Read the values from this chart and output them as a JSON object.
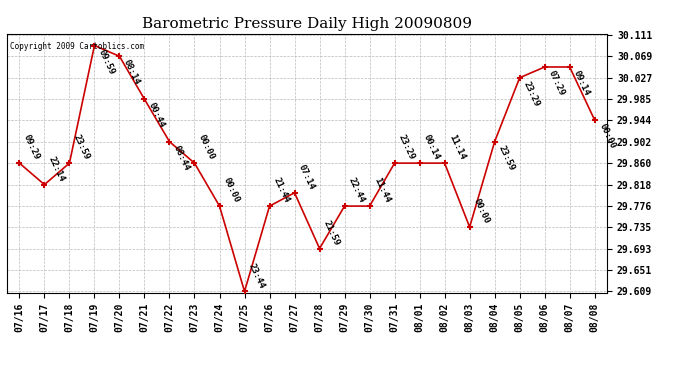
{
  "title": "Barometric Pressure Daily High 20090809",
  "copyright": "Copyright 2009 Cartoblics.com",
  "x_labels": [
    "07/16",
    "07/17",
    "07/18",
    "07/19",
    "07/20",
    "07/21",
    "07/22",
    "07/23",
    "07/24",
    "07/25",
    "07/26",
    "07/27",
    "07/28",
    "07/29",
    "07/30",
    "07/31",
    "08/01",
    "08/02",
    "08/03",
    "08/04",
    "08/05",
    "08/06",
    "08/07",
    "08/08"
  ],
  "y_values": [
    29.86,
    29.818,
    29.86,
    30.09,
    30.069,
    29.985,
    29.902,
    29.86,
    29.776,
    29.609,
    29.776,
    29.802,
    29.693,
    29.776,
    29.776,
    29.86,
    29.86,
    29.86,
    29.735,
    29.902,
    30.027,
    30.048,
    30.048,
    29.944
  ],
  "time_labels": [
    "09:29",
    "22:14",
    "23:59",
    "09:59",
    "08:14",
    "00:44",
    "08:44",
    "00:00",
    "00:00",
    "23:44",
    "21:44",
    "07:14",
    "21:59",
    "22:44",
    "11:44",
    "23:29",
    "00:14",
    "11:14",
    "00:00",
    "23:59",
    "23:29",
    "07:29",
    "09:14",
    "00:00"
  ],
  "y_min": 29.609,
  "y_max": 30.111,
  "y_ticks": [
    29.609,
    29.651,
    29.693,
    29.735,
    29.776,
    29.818,
    29.86,
    29.902,
    29.944,
    29.985,
    30.027,
    30.069,
    30.111
  ],
  "line_color": "#cc0000",
  "marker_color": "#cc0000",
  "bg_color": "#ffffff",
  "plot_bg_color": "#ffffff",
  "grid_color": "#bbbbbb",
  "title_fontsize": 11,
  "tick_fontsize": 7,
  "label_fontsize": 6.5
}
